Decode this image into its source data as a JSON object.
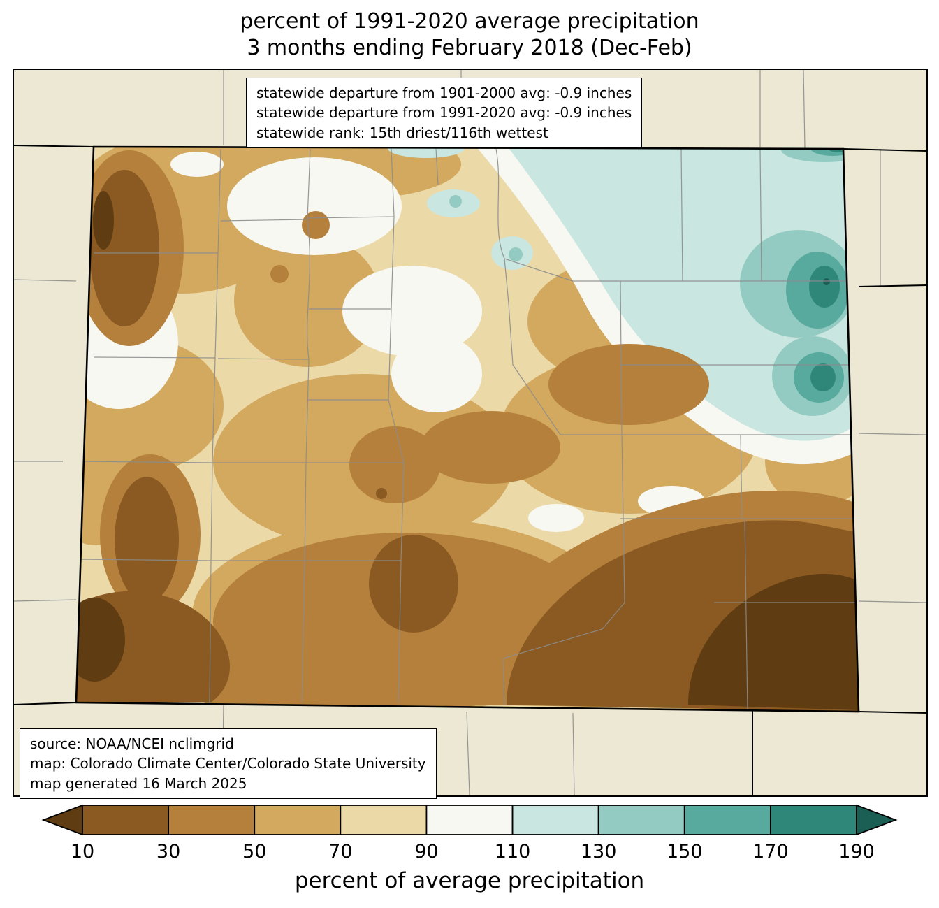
{
  "title": {
    "line1": "percent of 1991-2020 average precipitation",
    "line2": "3 months ending February 2018 (Dec-Feb)"
  },
  "stats_box": {
    "lines": [
      "statewide departure from 1901-2000 avg: -0.9 inches",
      "statewide departure from 1991-2020 avg: -0.9 inches",
      "statewide rank: 15th driest/116th wettest"
    ]
  },
  "source_box": {
    "lines": [
      "source: NOAA/NCEI nclimgrid",
      "map: Colorado Climate Center/Colorado State University",
      "map generated 16 March 2025"
    ]
  },
  "colorbar": {
    "label": "percent of average precipitation",
    "ticks": [
      "10",
      "30",
      "50",
      "70",
      "90",
      "110",
      "130",
      "150",
      "170",
      "190"
    ],
    "levels": [
      "<10",
      "10-30",
      "30-50",
      "50-70",
      "70-90",
      "90-110",
      "110-130",
      "130-150",
      "150-170",
      "170-190",
      ">190"
    ],
    "colors": [
      "#5f3c11",
      "#8a5a22",
      "#b5803c",
      "#d2a95f",
      "#ecd9a8",
      "#f8f8f3",
      "#c9e6e0",
      "#93cbc2",
      "#58aa9e",
      "#2f877a",
      "#1b5f54"
    ]
  },
  "palette": {
    "background": "#ece8d4",
    "county_line": "#8c8c8c",
    "state_border": "#000000"
  }
}
